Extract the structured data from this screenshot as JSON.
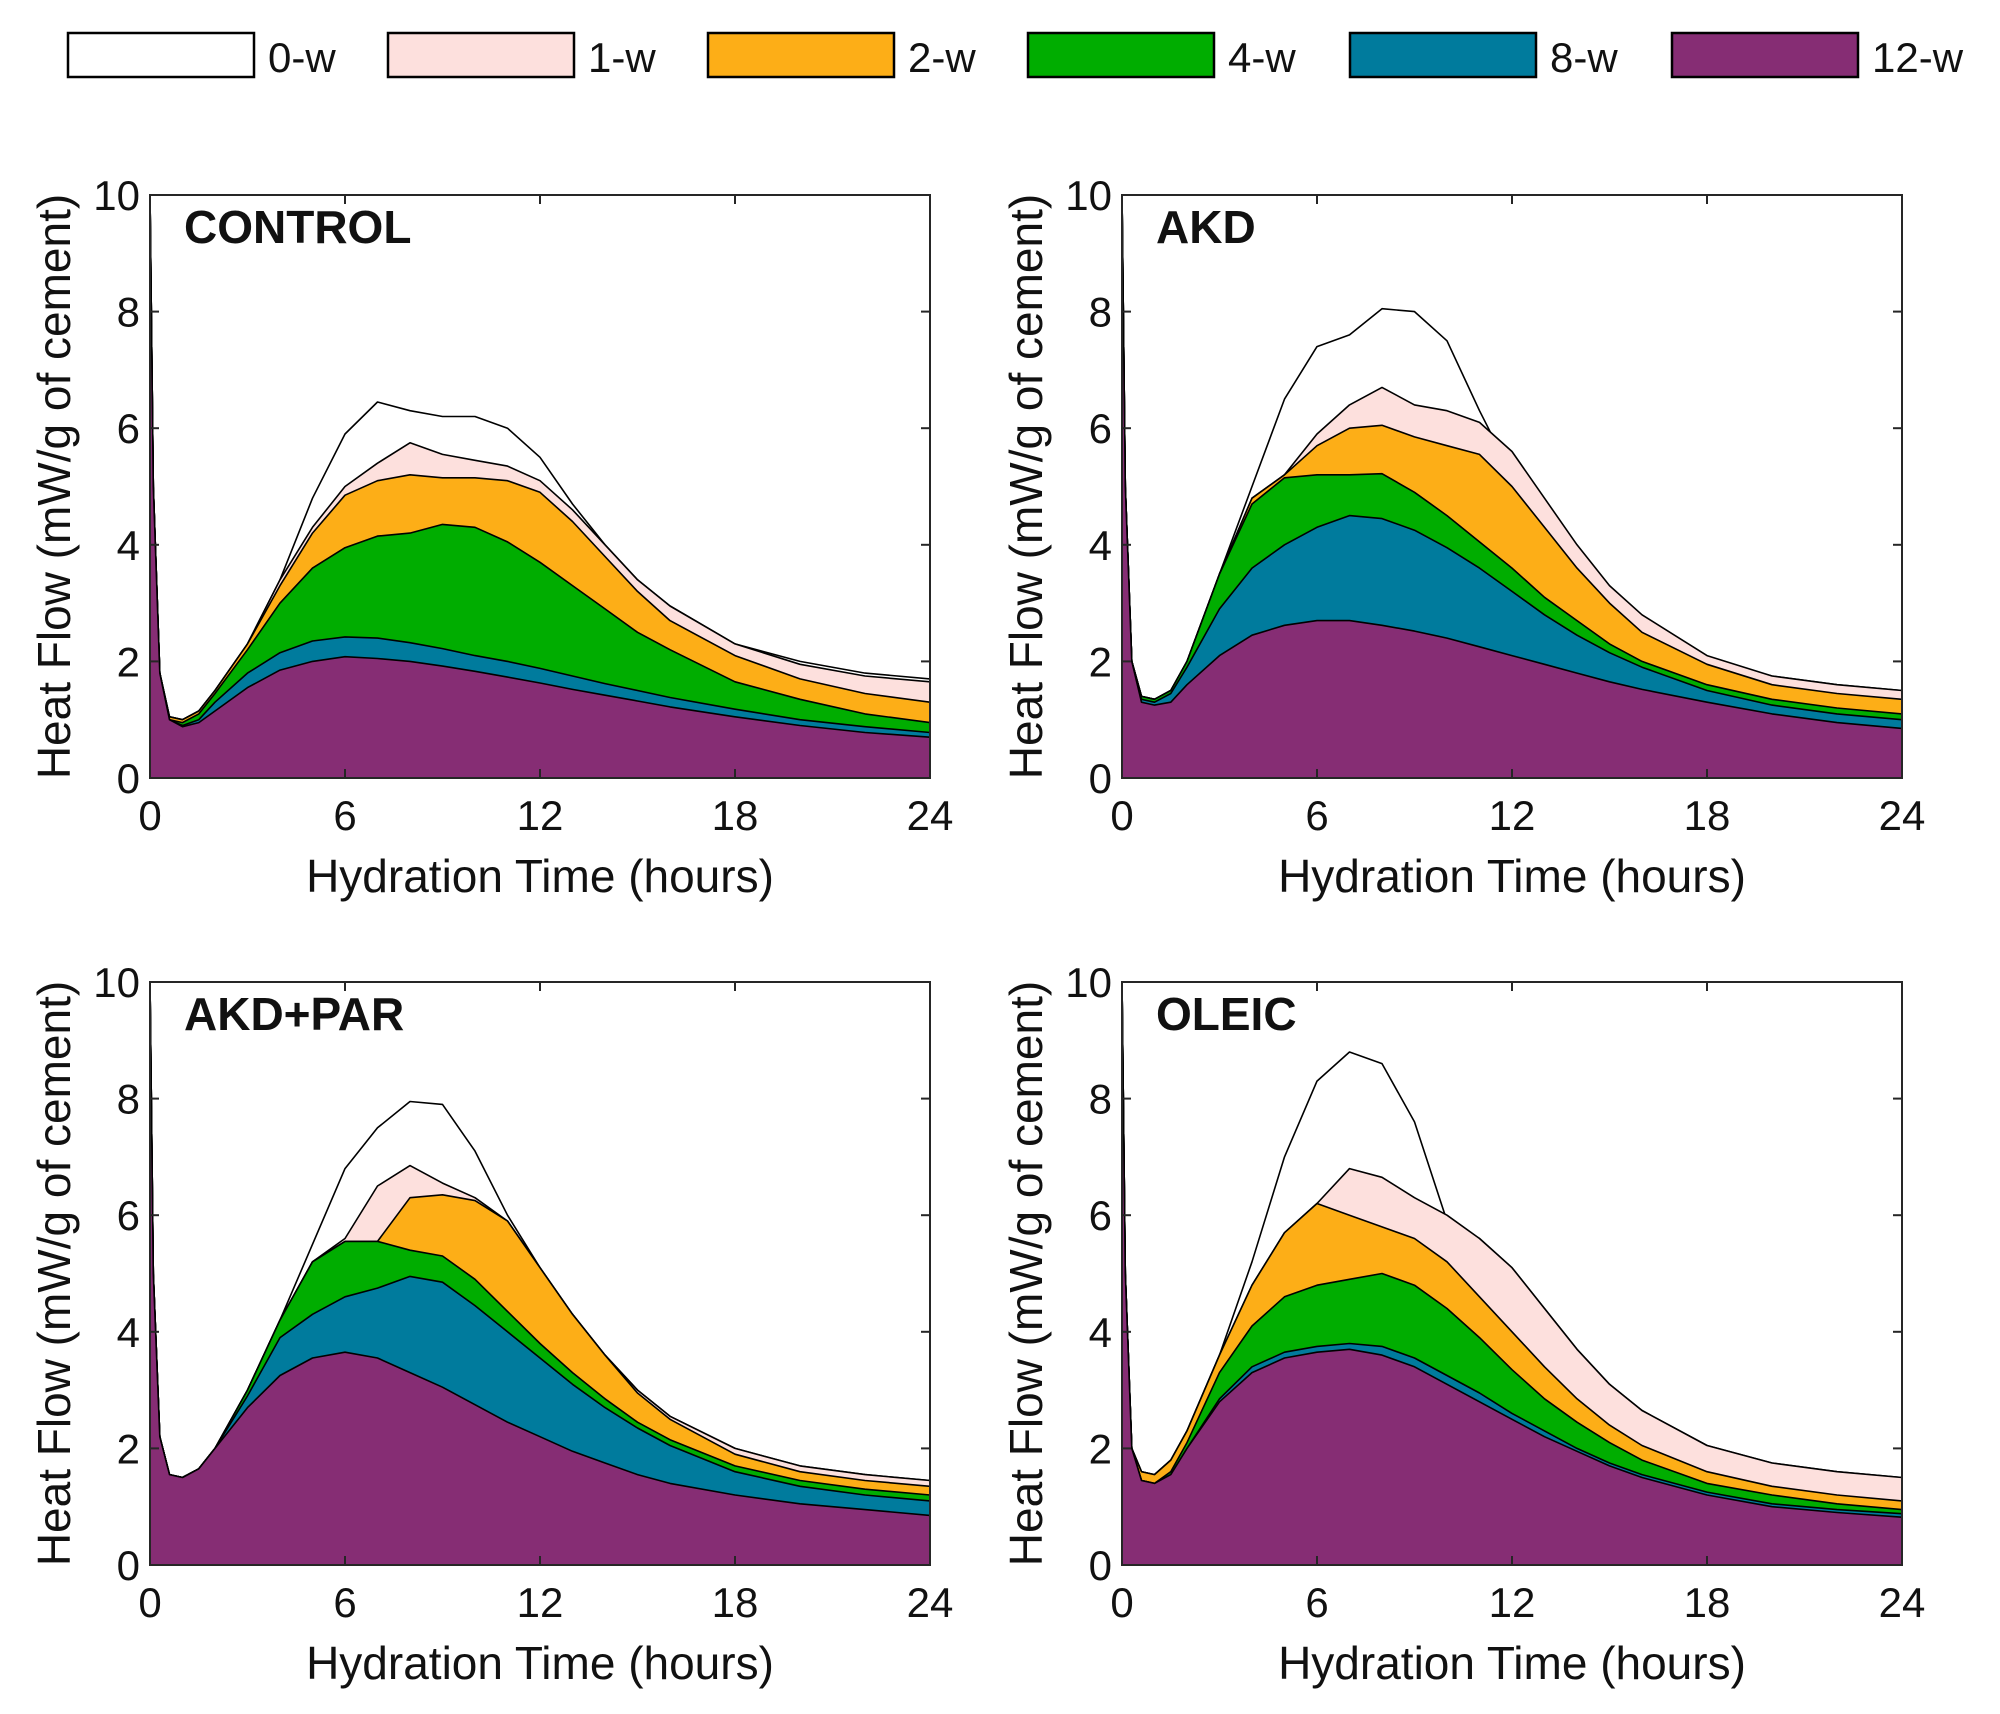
{
  "legend": {
    "entries": [
      {
        "label": "0-w",
        "color": "#ffffff"
      },
      {
        "label": "1-w",
        "color": "#fde0dd"
      },
      {
        "label": "2-w",
        "color": "#fdae17"
      },
      {
        "label": "4-w",
        "color": "#00ad00"
      },
      {
        "label": "8-w",
        "color": "#007b9d"
      },
      {
        "label": "12-w",
        "color": "#862d74"
      }
    ]
  },
  "chart_data": [
    {
      "type": "area",
      "title": "CONTROL",
      "xlabel": "Hydration Time (hours)",
      "ylabel": "Heat Flow (mW/g of cement)",
      "xlim": [
        0,
        24
      ],
      "ylim": [
        0,
        10
      ],
      "xticks": [
        0,
        6,
        12,
        18,
        24
      ],
      "yticks": [
        0,
        2,
        4,
        6,
        8,
        10
      ],
      "x": [
        0,
        0.1,
        0.3,
        0.6,
        1,
        1.5,
        2,
        3,
        4,
        5,
        6,
        7,
        8,
        9,
        10,
        11,
        12,
        13,
        14,
        15,
        16,
        18,
        20,
        22,
        24
      ],
      "series": [
        {
          "name": "0-w",
          "values": [
            10,
            5,
            1.8,
            1.05,
            1.0,
            1.15,
            1.5,
            2.3,
            3.4,
            4.8,
            5.9,
            6.45,
            6.3,
            6.2,
            6.2,
            6.0,
            5.5,
            4.7,
            4.0,
            3.4,
            2.95,
            2.3,
            2.0,
            1.8,
            1.7
          ]
        },
        {
          "name": "1-w",
          "values": [
            10,
            5,
            1.8,
            1.05,
            1.0,
            1.15,
            1.5,
            2.3,
            3.4,
            4.3,
            5.0,
            5.4,
            5.75,
            5.55,
            5.45,
            5.35,
            5.1,
            4.6,
            4.0,
            3.4,
            2.95,
            2.3,
            1.95,
            1.75,
            1.65
          ]
        },
        {
          "name": "2-w",
          "values": [
            10,
            5,
            1.8,
            1.05,
            1.0,
            1.15,
            1.5,
            2.3,
            3.3,
            4.2,
            4.85,
            5.1,
            5.2,
            5.15,
            5.15,
            5.1,
            4.9,
            4.4,
            3.8,
            3.2,
            2.7,
            2.1,
            1.7,
            1.45,
            1.3
          ]
        },
        {
          "name": "4-w",
          "values": [
            10,
            5,
            1.8,
            1.0,
            0.95,
            1.1,
            1.45,
            2.2,
            3.0,
            3.6,
            3.95,
            4.15,
            4.2,
            4.35,
            4.3,
            4.05,
            3.7,
            3.3,
            2.9,
            2.5,
            2.2,
            1.65,
            1.35,
            1.1,
            0.95
          ]
        },
        {
          "name": "8-w",
          "values": [
            10,
            5,
            1.8,
            1.0,
            0.9,
            1.0,
            1.3,
            1.8,
            2.15,
            2.35,
            2.42,
            2.4,
            2.32,
            2.22,
            2.1,
            2.0,
            1.88,
            1.75,
            1.62,
            1.5,
            1.38,
            1.18,
            1.0,
            0.88,
            0.78
          ]
        },
        {
          "name": "12-w",
          "values": [
            10,
            5,
            1.8,
            1.0,
            0.88,
            0.95,
            1.15,
            1.55,
            1.85,
            2.0,
            2.08,
            2.05,
            2.0,
            1.92,
            1.83,
            1.73,
            1.63,
            1.52,
            1.42,
            1.32,
            1.22,
            1.05,
            0.9,
            0.78,
            0.7
          ]
        }
      ]
    },
    {
      "type": "area",
      "title": "AKD",
      "xlabel": "Hydration Time (hours)",
      "ylabel": "Heat Flow (mW/g of cement)",
      "xlim": [
        0,
        24
      ],
      "ylim": [
        0,
        10
      ],
      "xticks": [
        0,
        6,
        12,
        18,
        24
      ],
      "yticks": [
        0,
        2,
        4,
        6,
        8,
        10
      ],
      "x": [
        0,
        0.1,
        0.3,
        0.6,
        1,
        1.5,
        2,
        3,
        4,
        5,
        6,
        7,
        8,
        9,
        10,
        11,
        12,
        13,
        14,
        15,
        16,
        18,
        20,
        22,
        24
      ],
      "series": [
        {
          "name": "0-w",
          "values": [
            10,
            5,
            2.0,
            1.4,
            1.35,
            1.5,
            2.0,
            3.5,
            5.0,
            6.5,
            7.4,
            7.6,
            8.05,
            8.0,
            7.5,
            6.3,
            5.2,
            4.3,
            3.6,
            3.0,
            2.6,
            2.05,
            1.75,
            1.6,
            1.5
          ]
        },
        {
          "name": "1-w",
          "values": [
            10,
            5,
            2.0,
            1.4,
            1.35,
            1.5,
            2.0,
            3.5,
            4.8,
            5.2,
            5.9,
            6.4,
            6.7,
            6.4,
            6.3,
            6.1,
            5.6,
            4.8,
            4.0,
            3.3,
            2.8,
            2.1,
            1.75,
            1.6,
            1.5
          ]
        },
        {
          "name": "2-w",
          "values": [
            10,
            5,
            2.0,
            1.4,
            1.35,
            1.5,
            2.0,
            3.5,
            4.8,
            5.2,
            5.7,
            6.0,
            6.05,
            5.85,
            5.7,
            5.55,
            5.0,
            4.3,
            3.6,
            3.0,
            2.5,
            1.95,
            1.6,
            1.45,
            1.35
          ]
        },
        {
          "name": "4-w",
          "values": [
            10,
            5,
            2.0,
            1.4,
            1.35,
            1.5,
            2.0,
            3.5,
            4.7,
            5.15,
            5.2,
            5.2,
            5.22,
            4.9,
            4.5,
            4.05,
            3.6,
            3.1,
            2.7,
            2.3,
            2.0,
            1.6,
            1.35,
            1.2,
            1.1
          ]
        },
        {
          "name": "8-w",
          "values": [
            10,
            5,
            2.0,
            1.35,
            1.3,
            1.45,
            1.9,
            2.9,
            3.6,
            4.0,
            4.3,
            4.5,
            4.45,
            4.25,
            3.95,
            3.6,
            3.2,
            2.8,
            2.45,
            2.15,
            1.9,
            1.5,
            1.25,
            1.1,
            1.0
          ]
        },
        {
          "name": "12-w",
          "values": [
            10,
            5,
            2.0,
            1.3,
            1.25,
            1.3,
            1.6,
            2.1,
            2.45,
            2.62,
            2.7,
            2.7,
            2.62,
            2.52,
            2.4,
            2.25,
            2.1,
            1.95,
            1.8,
            1.65,
            1.52,
            1.3,
            1.1,
            0.95,
            0.85
          ]
        }
      ]
    },
    {
      "type": "area",
      "title": "AKD+PAR",
      "xlabel": "Hydration Time (hours)",
      "ylabel": "Heat Flow (mW/g of cement)",
      "xlim": [
        0,
        24
      ],
      "ylim": [
        0,
        10
      ],
      "xticks": [
        0,
        6,
        12,
        18,
        24
      ],
      "yticks": [
        0,
        2,
        4,
        6,
        8,
        10
      ],
      "x": [
        0,
        0.1,
        0.3,
        0.6,
        1,
        1.5,
        2,
        3,
        4,
        5,
        6,
        7,
        8,
        9,
        10,
        11,
        12,
        13,
        14,
        15,
        16,
        18,
        20,
        22,
        24
      ],
      "series": [
        {
          "name": "0-w",
          "values": [
            10,
            5,
            2.2,
            1.55,
            1.5,
            1.65,
            2.0,
            3.0,
            4.2,
            5.5,
            6.8,
            7.5,
            7.95,
            7.9,
            7.1,
            6.0,
            5.1,
            4.3,
            3.6,
            3.0,
            2.55,
            2.0,
            1.7,
            1.55,
            1.45
          ]
        },
        {
          "name": "1-w",
          "values": [
            10,
            5,
            2.2,
            1.55,
            1.5,
            1.65,
            2.0,
            3.0,
            4.2,
            5.2,
            5.6,
            6.5,
            6.85,
            6.55,
            6.3,
            5.9,
            5.1,
            4.3,
            3.6,
            3.0,
            2.55,
            2.0,
            1.7,
            1.55,
            1.45
          ]
        },
        {
          "name": "2-w",
          "values": [
            10,
            5,
            2.2,
            1.55,
            1.5,
            1.65,
            2.0,
            3.0,
            4.2,
            5.2,
            5.55,
            5.55,
            6.3,
            6.35,
            6.25,
            5.9,
            5.1,
            4.3,
            3.6,
            2.95,
            2.5,
            1.9,
            1.6,
            1.45,
            1.35
          ]
        },
        {
          "name": "4-w",
          "values": [
            10,
            5,
            2.2,
            1.55,
            1.5,
            1.65,
            2.0,
            3.0,
            4.2,
            5.2,
            5.55,
            5.55,
            5.4,
            5.3,
            4.9,
            4.35,
            3.8,
            3.3,
            2.85,
            2.45,
            2.15,
            1.7,
            1.45,
            1.3,
            1.2
          ]
        },
        {
          "name": "8-w",
          "values": [
            10,
            5,
            2.2,
            1.55,
            1.5,
            1.65,
            2.0,
            2.9,
            3.9,
            4.3,
            4.6,
            4.75,
            4.95,
            4.85,
            4.45,
            4.0,
            3.55,
            3.1,
            2.7,
            2.35,
            2.05,
            1.6,
            1.35,
            1.2,
            1.1
          ]
        },
        {
          "name": "12-w",
          "values": [
            10,
            5,
            2.2,
            1.55,
            1.5,
            1.65,
            2.0,
            2.7,
            3.25,
            3.55,
            3.65,
            3.55,
            3.3,
            3.05,
            2.75,
            2.45,
            2.2,
            1.95,
            1.75,
            1.55,
            1.4,
            1.2,
            1.05,
            0.95,
            0.85
          ]
        }
      ]
    },
    {
      "type": "area",
      "title": "OLEIC",
      "xlabel": "Hydration Time (hours)",
      "ylabel": "Heat Flow (mW/g of cement)",
      "xlim": [
        0,
        24
      ],
      "ylim": [
        0,
        10
      ],
      "xticks": [
        0,
        6,
        12,
        18,
        24
      ],
      "yticks": [
        0,
        2,
        4,
        6,
        8,
        10
      ],
      "x": [
        0,
        0.1,
        0.3,
        0.6,
        1,
        1.5,
        2,
        3,
        4,
        5,
        6,
        7,
        8,
        9,
        10,
        11,
        12,
        13,
        14,
        15,
        16,
        18,
        20,
        22,
        24
      ],
      "series": [
        {
          "name": "0-w",
          "values": [
            10,
            5,
            2.0,
            1.6,
            1.55,
            1.8,
            2.3,
            3.6,
            5.2,
            7.0,
            8.3,
            8.8,
            8.6,
            7.6,
            5.9,
            5.6,
            5.1,
            4.4,
            3.7,
            3.1,
            2.65,
            2.05,
            1.75,
            1.6,
            1.5
          ]
        },
        {
          "name": "1-w",
          "values": [
            10,
            5,
            2.0,
            1.6,
            1.55,
            1.8,
            2.3,
            3.6,
            4.8,
            5.7,
            6.2,
            6.8,
            6.65,
            6.3,
            6.0,
            5.6,
            5.1,
            4.4,
            3.7,
            3.1,
            2.65,
            2.05,
            1.75,
            1.6,
            1.5
          ]
        },
        {
          "name": "2-w",
          "values": [
            10,
            5,
            2.0,
            1.6,
            1.55,
            1.8,
            2.3,
            3.6,
            4.8,
            5.7,
            6.2,
            6.0,
            5.8,
            5.6,
            5.2,
            4.6,
            4.0,
            3.4,
            2.85,
            2.4,
            2.05,
            1.6,
            1.35,
            1.2,
            1.1
          ]
        },
        {
          "name": "4-w",
          "values": [
            10,
            5,
            2.0,
            1.45,
            1.4,
            1.6,
            2.1,
            3.3,
            4.1,
            4.6,
            4.8,
            4.9,
            5.0,
            4.8,
            4.4,
            3.9,
            3.35,
            2.85,
            2.45,
            2.1,
            1.8,
            1.4,
            1.2,
            1.05,
            0.95
          ]
        },
        {
          "name": "8-w",
          "values": [
            10,
            5,
            2.0,
            1.45,
            1.4,
            1.55,
            2.0,
            2.85,
            3.4,
            3.65,
            3.75,
            3.8,
            3.75,
            3.55,
            3.25,
            2.95,
            2.6,
            2.3,
            2.0,
            1.75,
            1.55,
            1.25,
            1.05,
            0.95,
            0.88
          ]
        },
        {
          "name": "12-w",
          "values": [
            10,
            5,
            2.0,
            1.45,
            1.4,
            1.55,
            2.0,
            2.8,
            3.3,
            3.55,
            3.65,
            3.7,
            3.6,
            3.4,
            3.1,
            2.8,
            2.5,
            2.2,
            1.95,
            1.7,
            1.5,
            1.2,
            1.0,
            0.9,
            0.82
          ]
        }
      ]
    }
  ]
}
